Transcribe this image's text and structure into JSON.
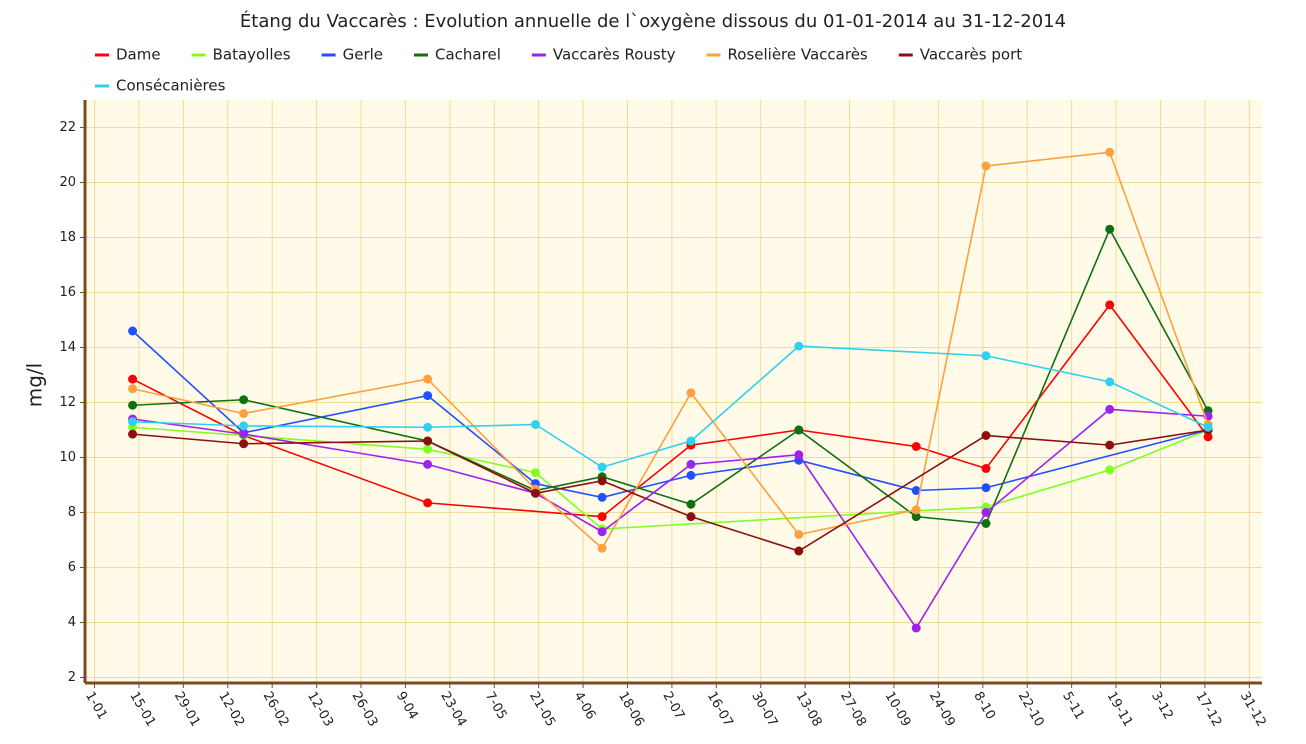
{
  "chart_data": {
    "type": "line",
    "title": "Étang du Vaccarès : Evolution annuelle de l`oxygène dissous du 01-01-2014 au 31-12-2014",
    "y_label": "mg/l",
    "xlim": [
      -2,
      369
    ],
    "xticks": [
      {
        "value": 1,
        "label": "1-01"
      },
      {
        "value": 15,
        "label": "15-01"
      },
      {
        "value": 29,
        "label": "29-01"
      },
      {
        "value": 43,
        "label": "12-02"
      },
      {
        "value": 57,
        "label": "26-02"
      },
      {
        "value": 71,
        "label": "12-03"
      },
      {
        "value": 85,
        "label": "26-03"
      },
      {
        "value": 99,
        "label": "9-04"
      },
      {
        "value": 113,
        "label": "23-04"
      },
      {
        "value": 127,
        "label": "7-05"
      },
      {
        "value": 141,
        "label": "21-05"
      },
      {
        "value": 155,
        "label": "4-06"
      },
      {
        "value": 169,
        "label": "18-06"
      },
      {
        "value": 183,
        "label": "2-07"
      },
      {
        "value": 197,
        "label": "16-07"
      },
      {
        "value": 211,
        "label": "30-07"
      },
      {
        "value": 225,
        "label": "13-08"
      },
      {
        "value": 239,
        "label": "27-08"
      },
      {
        "value": 253,
        "label": "10-09"
      },
      {
        "value": 267,
        "label": "24-09"
      },
      {
        "value": 281,
        "label": "8-10"
      },
      {
        "value": 295,
        "label": "22-10"
      },
      {
        "value": 309,
        "label": "5-11"
      },
      {
        "value": 323,
        "label": "19-11"
      },
      {
        "value": 337,
        "label": "3-12"
      },
      {
        "value": 351,
        "label": "17-12"
      },
      {
        "value": 365,
        "label": "31-12"
      }
    ],
    "ylim": [
      1.8,
      23
    ],
    "yticks": [
      2,
      4,
      6,
      8,
      10,
      12,
      14,
      16,
      18,
      20,
      22
    ],
    "grid": true,
    "series": [
      {
        "name": "Dame",
        "color": "#ff0000",
        "x": [
          13,
          48,
          106,
          161,
          189,
          223,
          260,
          282,
          321,
          352
        ],
        "values": [
          12.85,
          10.8,
          8.35,
          7.85,
          10.45,
          11.0,
          10.4,
          9.6,
          15.55,
          10.75
        ]
      },
      {
        "name": "Batayolles",
        "color": "#80ff20",
        "x": [
          13,
          48,
          106,
          140,
          161,
          282,
          321,
          352
        ],
        "values": [
          11.1,
          10.8,
          10.3,
          9.45,
          7.4,
          8.2,
          9.55,
          11.0
        ]
      },
      {
        "name": "Gerle",
        "color": "#2050ff",
        "x": [
          13,
          48,
          106,
          140,
          161,
          189,
          223,
          260,
          282,
          352
        ],
        "values": [
          14.6,
          10.9,
          12.25,
          9.05,
          8.55,
          9.35,
          9.9,
          8.8,
          8.9,
          11.0
        ]
      },
      {
        "name": "Cacharel",
        "color": "#107010",
        "x": [
          13,
          48,
          106,
          140,
          161,
          189,
          223,
          260,
          282,
          321,
          352
        ],
        "values": [
          11.9,
          12.1,
          10.6,
          8.8,
          9.3,
          8.3,
          11.0,
          7.85,
          7.6,
          18.3,
          11.7
        ]
      },
      {
        "name": "Vaccarès Rousty",
        "color": "#a020f0",
        "x": [
          13,
          48,
          106,
          140,
          161,
          189,
          223,
          260,
          282,
          321,
          352
        ],
        "values": [
          11.4,
          10.85,
          9.75,
          8.7,
          7.3,
          9.75,
          10.1,
          3.8,
          8.0,
          11.75,
          11.5
        ]
      },
      {
        "name": "Roselière Vaccarès",
        "color": "#ffa040",
        "x": [
          13,
          48,
          106,
          140,
          161,
          189,
          223,
          260,
          282,
          321,
          352
        ],
        "values": [
          12.5,
          11.6,
          12.85,
          8.85,
          6.7,
          12.35,
          7.2,
          8.1,
          20.6,
          21.1,
          11.2
        ]
      },
      {
        "name": "Vaccarès port",
        "color": "#8b1010",
        "x": [
          13,
          48,
          106,
          140,
          161,
          189,
          223,
          282,
          321,
          352
        ],
        "values": [
          10.85,
          10.5,
          10.6,
          8.7,
          9.15,
          7.85,
          6.6,
          10.8,
          10.45,
          11.0
        ]
      },
      {
        "name": "Consécanières",
        "color": "#30d0f0",
        "x": [
          13,
          48,
          106,
          140,
          161,
          189,
          223,
          282,
          321,
          352
        ],
        "values": [
          11.3,
          11.15,
          11.1,
          11.2,
          9.65,
          10.6,
          14.05,
          13.7,
          12.75,
          11.1
        ]
      }
    ]
  }
}
